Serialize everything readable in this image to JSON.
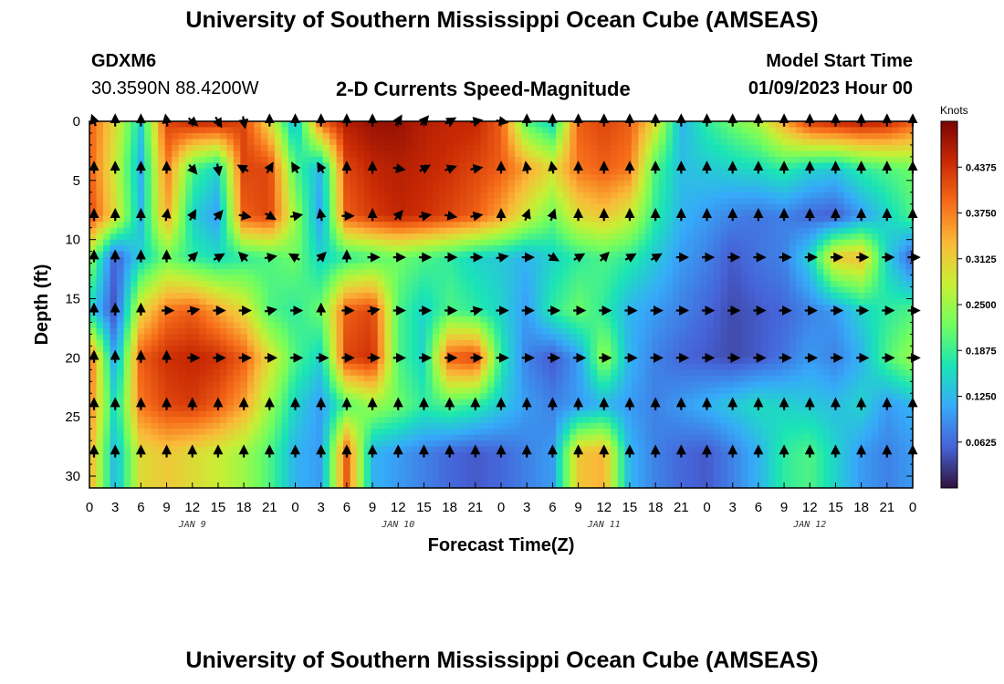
{
  "header": {
    "title": "University of Southern Mississippi Ocean Cube (AMSEAS)",
    "station_id": "GDXM6",
    "station_coords": "30.3590N  88.4200W",
    "subtitle": "2-D Currents Speed-Magnitude",
    "model_label": "Model Start Time",
    "model_time": "01/09/2023 Hour 00"
  },
  "footer": {
    "title": "University of Southern Mississippi Ocean Cube (AMSEAS)"
  },
  "colors": {
    "cmap": [
      "#30123b",
      "#4662d7",
      "#36aaf9",
      "#1ae4b6",
      "#72fe5e",
      "#c8ef34",
      "#faba39",
      "#f66b19",
      "#ca2a04",
      "#7a0403"
    ]
  },
  "chart_data": {
    "type": "heatmap",
    "title": "2-D Currents Speed-Magnitude",
    "xlabel": "Forecast Time(Z)",
    "ylabel": "Depth (ft)",
    "xlim": [
      0,
      96
    ],
    "ylim": [
      31,
      0
    ],
    "x_tick_labels": [
      "0",
      "3",
      "6",
      "9",
      "12",
      "15",
      "18",
      "21",
      "0",
      "3",
      "6",
      "9",
      "12",
      "15",
      "18",
      "21",
      "0",
      "3",
      "6",
      "9",
      "12",
      "15",
      "18",
      "21",
      "0",
      "3",
      "6",
      "9",
      "12",
      "15",
      "18",
      "21",
      "0"
    ],
    "y_ticks": [
      0,
      5,
      10,
      15,
      20,
      25,
      30
    ],
    "y_tick_labels": [
      "0",
      "5",
      "10",
      "15",
      "20",
      "25",
      "30"
    ],
    "day_labels": [
      "JAN 9",
      "JAN 10",
      "JAN 11",
      "JAN 12"
    ],
    "colorbar": {
      "label": "Knots",
      "range": [
        0,
        0.5
      ],
      "ticks": [
        0.0625,
        0.125,
        0.1875,
        0.25,
        0.3125,
        0.375,
        0.4375
      ],
      "tick_labels": [
        "0.0625",
        "0.1250",
        "0.1875",
        "0.2500",
        "0.3125",
        "0.3750",
        "0.4375"
      ]
    },
    "depth_rows": [
      0,
      4,
      8,
      11.5,
      16,
      20,
      24,
      28
    ],
    "speed_grid": [
      [
        0.4,
        0.3,
        0.15,
        0.42,
        0.45,
        0.45,
        0.42,
        0.3,
        0.12,
        0.4,
        0.46,
        0.48,
        0.48,
        0.46,
        0.45,
        0.45,
        0.4,
        0.2,
        0.15,
        0.4,
        0.42,
        0.4,
        0.3,
        0.12,
        0.18,
        0.22,
        0.26,
        0.35,
        0.43,
        0.45,
        0.46,
        0.45,
        0.4
      ],
      [
        0.4,
        0.28,
        0.12,
        0.38,
        0.2,
        0.15,
        0.42,
        0.42,
        0.2,
        0.12,
        0.42,
        0.45,
        0.46,
        0.45,
        0.44,
        0.42,
        0.4,
        0.35,
        0.3,
        0.38,
        0.4,
        0.38,
        0.2,
        0.13,
        0.14,
        0.15,
        0.16,
        0.18,
        0.15,
        0.14,
        0.18,
        0.2,
        0.22
      ],
      [
        0.42,
        0.3,
        0.13,
        0.35,
        0.15,
        0.1,
        0.4,
        0.42,
        0.25,
        0.1,
        0.4,
        0.43,
        0.45,
        0.44,
        0.42,
        0.4,
        0.35,
        0.28,
        0.22,
        0.3,
        0.32,
        0.28,
        0.18,
        0.12,
        0.1,
        0.08,
        0.07,
        0.08,
        0.06,
        0.05,
        0.1,
        0.15,
        0.2
      ],
      [
        0.25,
        0.05,
        0.15,
        0.22,
        0.18,
        0.16,
        0.18,
        0.2,
        0.22,
        0.15,
        0.18,
        0.2,
        0.22,
        0.2,
        0.18,
        0.15,
        0.14,
        0.12,
        0.15,
        0.18,
        0.2,
        0.18,
        0.14,
        0.1,
        0.08,
        0.05,
        0.07,
        0.08,
        0.15,
        0.32,
        0.33,
        0.15,
        0.05
      ],
      [
        0.15,
        0.04,
        0.3,
        0.38,
        0.4,
        0.35,
        0.3,
        0.2,
        0.18,
        0.22,
        0.4,
        0.42,
        0.2,
        0.15,
        0.2,
        0.18,
        0.15,
        0.1,
        0.18,
        0.22,
        0.18,
        0.12,
        0.1,
        0.08,
        0.06,
        0.04,
        0.05,
        0.06,
        0.08,
        0.1,
        0.15,
        0.18,
        0.2
      ],
      [
        0.4,
        0.1,
        0.4,
        0.44,
        0.45,
        0.44,
        0.4,
        0.3,
        0.2,
        0.15,
        0.42,
        0.44,
        0.2,
        0.15,
        0.4,
        0.42,
        0.18,
        0.08,
        0.05,
        0.1,
        0.25,
        0.12,
        0.08,
        0.06,
        0.05,
        0.04,
        0.05,
        0.07,
        0.1,
        0.08,
        0.12,
        0.2,
        0.25
      ],
      [
        0.38,
        0.15,
        0.38,
        0.42,
        0.43,
        0.4,
        0.35,
        0.25,
        0.15,
        0.1,
        0.2,
        0.25,
        0.22,
        0.18,
        0.2,
        0.18,
        0.14,
        0.1,
        0.08,
        0.1,
        0.12,
        0.1,
        0.08,
        0.1,
        0.12,
        0.14,
        0.16,
        0.15,
        0.14,
        0.13,
        0.15,
        0.1,
        0.12
      ],
      [
        0.35,
        0.12,
        0.3,
        0.32,
        0.3,
        0.28,
        0.25,
        0.2,
        0.12,
        0.1,
        0.4,
        0.12,
        0.1,
        0.08,
        0.06,
        0.05,
        0.06,
        0.08,
        0.1,
        0.32,
        0.34,
        0.12,
        0.08,
        0.06,
        0.05,
        0.08,
        0.12,
        0.18,
        0.2,
        0.15,
        0.1,
        0.08,
        0.1
      ]
    ],
    "direction_grid": [
      [
        -20,
        0,
        0,
        -10,
        130,
        150,
        170,
        0,
        0,
        0,
        0,
        0,
        30,
        40,
        60,
        80,
        100,
        0,
        0,
        0,
        0,
        0,
        0,
        0,
        0,
        0,
        0,
        0,
        0,
        0,
        0,
        0,
        0
      ],
      [
        0,
        0,
        0,
        0,
        140,
        170,
        -60,
        30,
        330,
        330,
        0,
        0,
        100,
        60,
        70,
        80,
        0,
        350,
        350,
        0,
        0,
        0,
        0,
        0,
        0,
        0,
        0,
        0,
        0,
        0,
        0,
        0,
        0
      ],
      [
        0,
        0,
        0,
        10,
        30,
        40,
        100,
        120,
        80,
        350,
        90,
        0,
        40,
        80,
        100,
        80,
        0,
        20,
        20,
        0,
        0,
        0,
        0,
        0,
        0,
        0,
        0,
        0,
        0,
        0,
        0,
        0,
        0
      ],
      [
        0,
        0,
        0,
        0,
        45,
        60,
        -45,
        80,
        300,
        45,
        0,
        90,
        90,
        90,
        90,
        90,
        80,
        90,
        120,
        60,
        45,
        60,
        60,
        90,
        90,
        90,
        90,
        90,
        90,
        90,
        90,
        90,
        90
      ],
      [
        0,
        0,
        0,
        90,
        80,
        90,
        90,
        80,
        90,
        0,
        90,
        80,
        90,
        90,
        90,
        80,
        90,
        90,
        90,
        90,
        90,
        90,
        90,
        90,
        90,
        90,
        90,
        90,
        90,
        90,
        90,
        90,
        90
      ],
      [
        0,
        0,
        0,
        0,
        90,
        90,
        90,
        90,
        90,
        90,
        90,
        90,
        90,
        90,
        90,
        90,
        90,
        90,
        90,
        90,
        90,
        90,
        90,
        90,
        90,
        90,
        90,
        90,
        90,
        90,
        90,
        90,
        90
      ],
      [
        0,
        0,
        0,
        0,
        0,
        0,
        0,
        0,
        0,
        0,
        0,
        0,
        0,
        0,
        0,
        0,
        0,
        0,
        0,
        0,
        0,
        0,
        0,
        0,
        0,
        0,
        0,
        0,
        0,
        0,
        0,
        0,
        0
      ],
      [
        0,
        0,
        0,
        0,
        0,
        0,
        0,
        0,
        0,
        0,
        0,
        0,
        0,
        0,
        0,
        0,
        0,
        0,
        0,
        0,
        0,
        0,
        0,
        0,
        0,
        0,
        0,
        0,
        0,
        0,
        0,
        0,
        0
      ]
    ]
  }
}
